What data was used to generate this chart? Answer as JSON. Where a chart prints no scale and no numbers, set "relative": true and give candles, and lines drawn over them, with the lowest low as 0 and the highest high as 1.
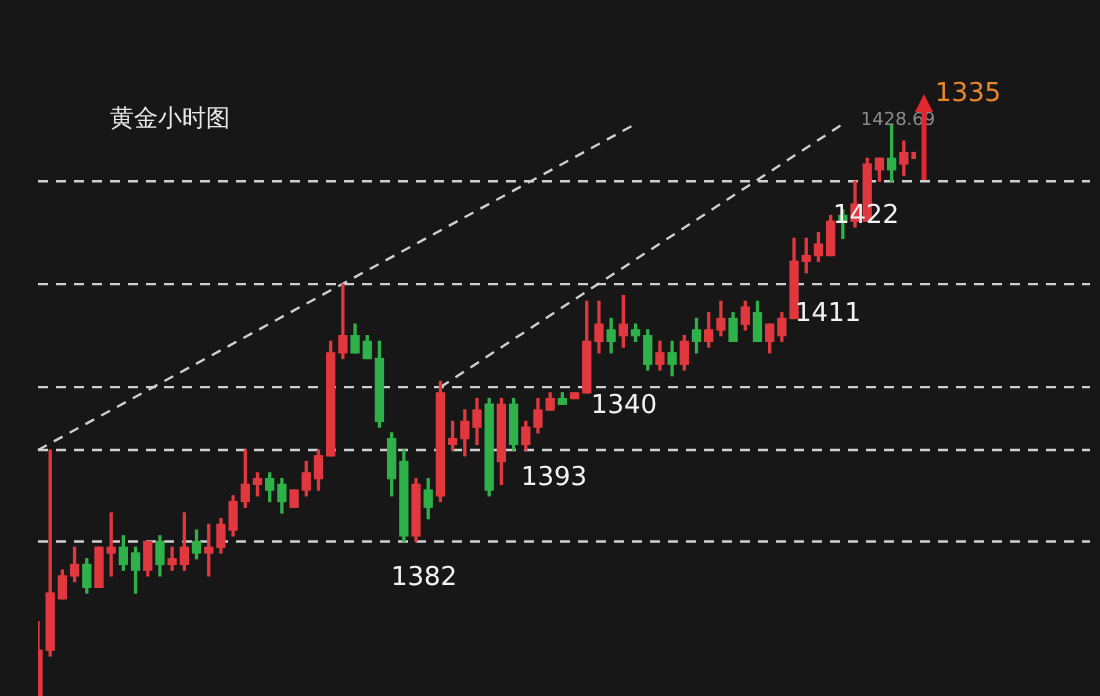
{
  "chart_data": {
    "type": "candlestick",
    "title": "黄金小时图",
    "relative": true,
    "categories": [
      null,
      null,
      null,
      null,
      null,
      null,
      null,
      null,
      null,
      null,
      null,
      null,
      null,
      null,
      null,
      null,
      null,
      null,
      null,
      null,
      null,
      null,
      null,
      null,
      null,
      null,
      null,
      null,
      null,
      null,
      null,
      null,
      null,
      null,
      null,
      null,
      null,
      null,
      null,
      null,
      null,
      null,
      null,
      null,
      null,
      null,
      null,
      null,
      null,
      null,
      null,
      null,
      null,
      null,
      null,
      null,
      null,
      null,
      null,
      null,
      null,
      null,
      null,
      null,
      null,
      null,
      null,
      null,
      null,
      null,
      null,
      null,
      null
    ],
    "ohlc": [
      [
        0,
        0.13,
        0,
        0.08
      ],
      [
        0.08,
        0.43,
        0.07,
        0.18
      ],
      [
        0.17,
        0.22,
        0.17,
        0.21
      ],
      [
        0.21,
        0.26,
        0.2,
        0.23
      ],
      [
        0.23,
        0.24,
        0.18,
        0.19
      ],
      [
        0.19,
        0.26,
        0.19,
        0.26
      ],
      [
        0.25,
        0.32,
        0.21,
        0.26
      ],
      [
        0.26,
        0.28,
        0.22,
        0.23
      ],
      [
        0.25,
        0.26,
        0.18,
        0.22
      ],
      [
        0.22,
        0.27,
        0.21,
        0.27
      ],
      [
        0.27,
        0.28,
        0.21,
        0.23
      ],
      [
        0.23,
        0.26,
        0.22,
        0.24
      ],
      [
        0.23,
        0.32,
        0.22,
        0.26
      ],
      [
        0.27,
        0.29,
        0.24,
        0.25
      ],
      [
        0.25,
        0.3,
        0.21,
        0.26
      ],
      [
        0.26,
        0.31,
        0.25,
        0.3
      ],
      [
        0.29,
        0.35,
        0.28,
        0.34
      ],
      [
        0.34,
        0.43,
        0.33,
        0.37
      ],
      [
        0.37,
        0.39,
        0.35,
        0.38
      ],
      [
        0.38,
        0.39,
        0.34,
        0.36
      ],
      [
        0.37,
        0.38,
        0.32,
        0.34
      ],
      [
        0.33,
        0.36,
        0.33,
        0.36
      ],
      [
        0.36,
        0.41,
        0.35,
        0.39
      ],
      [
        0.38,
        0.43,
        0.36,
        0.42
      ],
      [
        0.42,
        0.62,
        0.42,
        0.6
      ],
      [
        0.6,
        0.72,
        0.59,
        0.63
      ],
      [
        0.63,
        0.65,
        0.6,
        0.6
      ],
      [
        0.62,
        0.63,
        0.59,
        0.59
      ],
      [
        0.59,
        0.62,
        0.47,
        0.48
      ],
      [
        0.45,
        0.46,
        0.35,
        0.38
      ],
      [
        0.41,
        0.43,
        0.27,
        0.28
      ],
      [
        0.28,
        0.38,
        0.27,
        0.37
      ],
      [
        0.36,
        0.38,
        0.31,
        0.33
      ],
      [
        0.35,
        0.55,
        0.34,
        0.53
      ],
      [
        0.44,
        0.48,
        0.43,
        0.45
      ],
      [
        0.45,
        0.5,
        0.42,
        0.48
      ],
      [
        0.47,
        0.52,
        0.44,
        0.5
      ],
      [
        0.51,
        0.52,
        0.35,
        0.36
      ],
      [
        0.41,
        0.52,
        0.37,
        0.51
      ],
      [
        0.51,
        0.52,
        0.43,
        0.44
      ],
      [
        0.44,
        0.48,
        0.43,
        0.47
      ],
      [
        0.47,
        0.52,
        0.46,
        0.5
      ],
      [
        0.5,
        0.53,
        0.5,
        0.52
      ],
      [
        0.52,
        0.53,
        0.51,
        0.51
      ],
      [
        0.52,
        0.53,
        0.52,
        0.53
      ],
      [
        0.53,
        0.69,
        0.53,
        0.62
      ],
      [
        0.62,
        0.69,
        0.6,
        0.65
      ],
      [
        0.64,
        0.66,
        0.6,
        0.62
      ],
      [
        0.63,
        0.7,
        0.61,
        0.65
      ],
      [
        0.64,
        0.65,
        0.62,
        0.63
      ],
      [
        0.63,
        0.64,
        0.57,
        0.58
      ],
      [
        0.58,
        0.62,
        0.57,
        0.6
      ],
      [
        0.6,
        0.62,
        0.56,
        0.58
      ],
      [
        0.58,
        0.63,
        0.57,
        0.62
      ],
      [
        0.64,
        0.66,
        0.6,
        0.62
      ],
      [
        0.62,
        0.67,
        0.61,
        0.64
      ],
      [
        0.64,
        0.69,
        0.63,
        0.66
      ],
      [
        0.66,
        0.67,
        0.62,
        0.62
      ],
      [
        0.65,
        0.69,
        0.64,
        0.68
      ],
      [
        0.67,
        0.69,
        0.62,
        0.62
      ],
      [
        0.62,
        0.65,
        0.6,
        0.65
      ],
      [
        0.63,
        0.67,
        0.62,
        0.66
      ],
      [
        0.66,
        0.8,
        0.66,
        0.76
      ],
      [
        0.76,
        0.8,
        0.74,
        0.77
      ],
      [
        0.77,
        0.81,
        0.76,
        0.79
      ],
      [
        0.77,
        0.84,
        0.77,
        0.83
      ],
      [
        0.84,
        0.85,
        0.8,
        0.83
      ],
      [
        0.83,
        0.9,
        0.82,
        0.86
      ],
      [
        0.83,
        0.94,
        0.83,
        0.93
      ],
      [
        0.92,
        0.94,
        0.9,
        0.94
      ],
      [
        0.94,
        1,
        0.9,
        0.92
      ],
      [
        0.93,
        0.97,
        0.91,
        0.95
      ],
      [
        0.94,
        0.95,
        0.94,
        0.95
      ]
    ],
    "colors": [
      "#e0383e",
      "#e0383e",
      "#e0383e",
      "#e0383e",
      "#2fb14a",
      "#e0383e",
      "#e0383e",
      "#2fb14a",
      "#2fb14a",
      "#e0383e",
      "#2fb14a",
      "#e0383e",
      "#e0383e",
      "#2fb14a",
      "#e0383e",
      "#e0383e",
      "#e0383e",
      "#e0383e",
      "#e0383e",
      "#2fb14a",
      "#2fb14a",
      "#e0383e",
      "#e0383e",
      "#e0383e",
      "#e0383e",
      "#e0383e",
      "#2fb14a",
      "#2fb14a",
      "#2fb14a",
      "#2fb14a",
      "#2fb14a",
      "#e0383e",
      "#2fb14a",
      "#e0383e",
      "#e0383e",
      "#e0383e",
      "#e0383e",
      "#2fb14a",
      "#e0383e",
      "#2fb14a",
      "#e0383e",
      "#e0383e",
      "#e0383e",
      "#2fb14a",
      "#e0383e",
      "#e0383e",
      "#e0383e",
      "#2fb14a",
      "#e0383e",
      "#2fb14a",
      "#2fb14a",
      "#e0383e",
      "#2fb14a",
      "#e0383e",
      "#2fb14a",
      "#e0383e",
      "#e0383e",
      "#2fb14a",
      "#e0383e",
      "#2fb14a",
      "#e0383e",
      "#e0383e",
      "#e0383e",
      "#e0383e",
      "#e0383e",
      "#e0383e",
      "#2fb14a",
      "#e0383e",
      "#e0383e",
      "#e0383e",
      "#2fb14a",
      "#e0383e",
      "#e0383e"
    ],
    "series": [
      {
        "type": "line",
        "color": "#cfcfcf",
        "line_style": "dashed",
        "values": [
          0.43,
          null,
          null,
          null,
          null,
          null,
          null,
          null,
          null,
          null,
          null,
          null,
          null,
          null,
          null,
          null,
          null,
          null,
          null,
          null,
          null,
          null,
          null,
          null,
          null,
          null,
          null,
          null,
          null,
          null,
          null,
          null,
          null,
          null,
          null,
          null,
          null,
          null,
          null,
          null,
          null,
          null,
          null,
          null,
          null,
          null,
          null,
          null,
          null,
          1.0,
          null,
          null,
          null,
          null,
          null,
          null,
          null,
          null,
          null,
          null,
          null,
          null,
          null,
          null,
          null,
          null,
          null,
          null,
          null,
          null,
          null,
          null,
          null
        ]
      },
      {
        "type": "line",
        "color": "#cfcfcf",
        "line_style": "dashed",
        "values": [
          null,
          null,
          null,
          null,
          null,
          null,
          null,
          null,
          null,
          null,
          null,
          null,
          null,
          null,
          null,
          null,
          null,
          null,
          null,
          null,
          null,
          null,
          null,
          null,
          null,
          null,
          null,
          null,
          null,
          null,
          null,
          null,
          null,
          0.54,
          null,
          null,
          null,
          null,
          null,
          null,
          null,
          null,
          null,
          null,
          null,
          null,
          null,
          null,
          null,
          null,
          null,
          null,
          null,
          null,
          null,
          null,
          null,
          null,
          null,
          null,
          null,
          null,
          null,
          null,
          null,
          null,
          1.0,
          null,
          null,
          null,
          null,
          null,
          null
        ]
      }
    ],
    "ref_lines": [
      {
        "axis": "y",
        "value": 0.43,
        "color": "#cfcfcf",
        "line_style": "dashed"
      },
      {
        "axis": "y",
        "value": 0.27,
        "color": "#cfcfcf",
        "line_style": "dashed"
      },
      {
        "axis": "y",
        "value": 0.72,
        "color": "#cfcfcf",
        "line_style": "dashed"
      },
      {
        "axis": "y",
        "value": 0.54,
        "color": "#cfcfcf",
        "line_style": "dashed"
      },
      {
        "axis": "y",
        "value": 0.9,
        "color": "#cfcfcf",
        "line_style": "dashed"
      }
    ],
    "annotations": [
      "1382",
      "1393",
      "1340",
      "1411",
      "1422",
      "1428.69",
      "1335"
    ],
    "legend": false,
    "tick_labels": false
  }
}
